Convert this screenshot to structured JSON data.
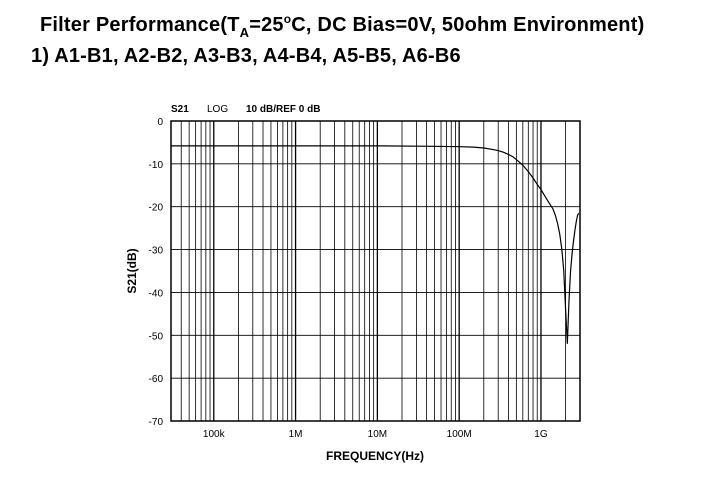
{
  "heading": {
    "line1": {
      "pre": "Filter Performance(T",
      "sub": "A",
      "mid": "=25",
      "sup": "o",
      "post": "C, DC Bias=0V, 50ohm Environment)"
    },
    "line2": "1) A1-B1, A2-B2, A3-B3, A4-B4, A5-B5, A6-B6"
  },
  "chart_data": {
    "type": "line",
    "header": {
      "param": "S21",
      "scale": "LOG",
      "ref": "10 dB/REF 0 dB"
    },
    "xlabel": "FREQUENCY(Hz)",
    "ylabel": "S21(dB)",
    "xscale": "log",
    "xlim": [
      30000,
      3000000000
    ],
    "ylim": [
      -70,
      0
    ],
    "grid": true,
    "x_ticks": [
      {
        "value": 100000,
        "label": "100k"
      },
      {
        "value": 1000000,
        "label": "1M"
      },
      {
        "value": 10000000,
        "label": "10M"
      },
      {
        "value": 100000000,
        "label": "100M"
      },
      {
        "value": 1000000000,
        "label": "1G"
      }
    ],
    "y_ticks": [
      0,
      -10,
      -20,
      -30,
      -40,
      -50,
      -60,
      -70
    ],
    "series": [
      {
        "color": "#000000",
        "x": [
          30000,
          100000,
          1000000,
          10000000,
          50000000,
          100000000,
          150000000,
          200000000,
          250000000,
          300000000,
          350000000,
          400000000,
          450000000,
          500000000,
          600000000,
          700000000,
          800000000,
          900000000,
          1000000000,
          1200000000,
          1400000000,
          1500000000,
          1600000000,
          1700000000,
          1800000000,
          1900000000,
          2000000000,
          2100000000,
          2200000000,
          2300000000,
          2400000000,
          2500000000,
          2600000000,
          2700000000,
          2800000000,
          2900000000
        ],
        "y": [
          -5.8,
          -5.8,
          -5.8,
          -5.8,
          -5.9,
          -6.0,
          -6.1,
          -6.3,
          -6.6,
          -6.9,
          -7.3,
          -7.8,
          -8.3,
          -9.0,
          -10.3,
          -11.8,
          -13.3,
          -14.8,
          -16.0,
          -18.5,
          -20.5,
          -22.0,
          -24.0,
          -26.5,
          -30.0,
          -35.0,
          -44.0,
          -52.0,
          -42.0,
          -35.0,
          -31.0,
          -28.0,
          -25.5,
          -23.5,
          -22.0,
          -21.5
        ]
      }
    ]
  }
}
